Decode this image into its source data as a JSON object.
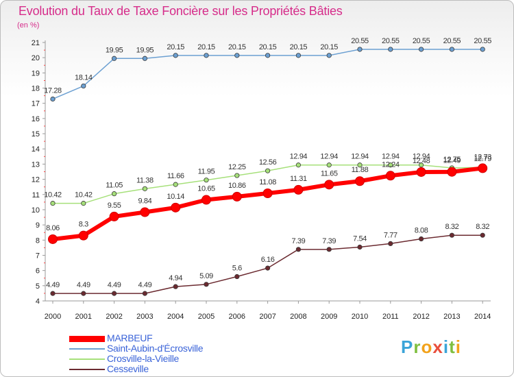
{
  "title": "Evolution du Taux de Taxe Foncière sur les Propriétés Bâties",
  "unit": "(en %)",
  "logo": {
    "letters": [
      "P",
      "r",
      "o",
      "x",
      "i",
      "t",
      "i"
    ],
    "colors": [
      "#3aa4d8",
      "#7fbf3f",
      "#f2a21b",
      "#e94e3c",
      "#3aa4d8",
      "#7fbf3f",
      "#f2a21b"
    ]
  },
  "chart_data": {
    "type": "line",
    "title": "Evolution du Taux de Taxe Foncière sur les Propriétés Bâties",
    "ylabel": "(en %)",
    "xlabel": "",
    "x": [
      2000,
      2001,
      2002,
      2003,
      2004,
      2005,
      2006,
      2007,
      2008,
      2009,
      2010,
      2011,
      2012,
      2013,
      2014
    ],
    "ylim": [
      4,
      21
    ],
    "yticks": [
      4,
      5,
      6,
      7,
      8,
      9,
      10,
      11,
      12,
      13,
      14,
      15,
      16,
      17,
      18,
      19,
      20,
      21
    ],
    "grid": false,
    "legend_position": "bottom-left",
    "series": [
      {
        "name": "MARBEUF",
        "color": "#ff0000",
        "highlight": true,
        "values": [
          8.06,
          8.3,
          9.55,
          9.84,
          10.14,
          10.65,
          10.86,
          11.08,
          11.31,
          11.65,
          11.88,
          12.24,
          12.48,
          12.49,
          12.73
        ],
        "labels": [
          "8.06",
          "8.3",
          "9.55",
          "9.84",
          "10.14",
          "10.65",
          "10.86",
          "11.08",
          "11.31",
          "11.65",
          "11.88",
          "12.24",
          "12.48",
          "12.49",
          "12.73"
        ]
      },
      {
        "name": "Saint-Aubin-d'Écrosville",
        "color": "#6ca0d2",
        "values": [
          17.28,
          18.14,
          19.95,
          19.95,
          20.15,
          20.15,
          20.15,
          20.15,
          20.15,
          20.15,
          20.55,
          20.55,
          20.55,
          20.55,
          20.55
        ],
        "labels": [
          "17.28",
          "18.14",
          "19.95",
          "19.95",
          "20.15",
          "20.15",
          "20.15",
          "20.15",
          "20.15",
          "20.15",
          "20.55",
          "20.55",
          "20.55",
          "20.55",
          "20.55"
        ]
      },
      {
        "name": "Crosville-la-Vieille",
        "color": "#a6e07a",
        "values": [
          10.42,
          10.42,
          11.05,
          11.38,
          11.66,
          11.95,
          12.25,
          12.56,
          12.94,
          12.94,
          12.94,
          12.94,
          12.94,
          12.75,
          12.79
        ],
        "labels": [
          "10.42",
          "10.42",
          "11.05",
          "11.38",
          "11.66",
          "11.95",
          "12.25",
          "12.56",
          "12.94",
          "12.94",
          "12.94",
          "12.94",
          "12.94",
          "12.75",
          "12.79"
        ]
      },
      {
        "name": "Cesseville",
        "color": "#6b2a30",
        "values": [
          4.49,
          4.49,
          4.49,
          4.49,
          4.94,
          5.09,
          5.6,
          6.16,
          7.39,
          7.39,
          7.54,
          7.77,
          8.08,
          8.32,
          8.32
        ],
        "labels": [
          "4.49",
          "4.49",
          "4.49",
          "4.49",
          "4.94",
          "5.09",
          "5.6",
          "6.16",
          "7.39",
          "7.39",
          "7.54",
          "7.77",
          "8.08",
          "8.32",
          "8.32"
        ]
      }
    ]
  }
}
